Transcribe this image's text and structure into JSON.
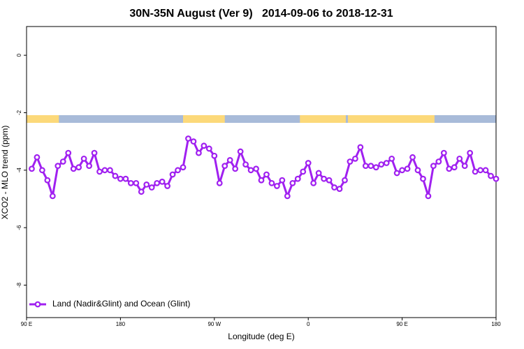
{
  "chart_data": {
    "type": "line",
    "title": "30N-35N August (Ver 9)   2014-09-06 to 2018-12-31",
    "x_label": "Longitude (deg E)",
    "y_label": "XCO2 - MLO trend (ppm)",
    "xlim": [
      90,
      540
    ],
    "ylim": [
      -9.13,
      1.0
    ],
    "xticks": [
      {
        "value": 90,
        "label": "90 E"
      },
      180,
      {
        "value": 270,
        "label": "90 W"
      },
      {
        "value": 360,
        "label": "0"
      },
      {
        "value": 450,
        "label": "90 E"
      },
      {
        "value": 540,
        "label": "180"
      }
    ],
    "yticks": [
      0,
      -2,
      -4,
      -6,
      -8
    ],
    "legend": "lower left",
    "land_color": "#fcd97a",
    "ocean_color": "#a8bbd9",
    "land_ranges": [
      [
        90,
        121
      ],
      [
        240,
        280
      ],
      [
        352,
        396
      ],
      [
        398,
        481
      ]
    ],
    "x": [
      95,
      100,
      105,
      110,
      115,
      120,
      125,
      130,
      135,
      140,
      145,
      150,
      155,
      160,
      165,
      170,
      175,
      180,
      185,
      190,
      195,
      200,
      205,
      210,
      215,
      220,
      225,
      230,
      235,
      240,
      245,
      250,
      255,
      260,
      265,
      270,
      275,
      280,
      285,
      290,
      295,
      300,
      305,
      310,
      315,
      320,
      325,
      330,
      335,
      340,
      345,
      350,
      355,
      360,
      365,
      370,
      375,
      380,
      385,
      390,
      395,
      400,
      405,
      410,
      415,
      420,
      425,
      430,
      435,
      440,
      445,
      450,
      455,
      460,
      465,
      470,
      475,
      480,
      485,
      490,
      495,
      500,
      505,
      510,
      515,
      520,
      525,
      530,
      535,
      540
    ],
    "series": [
      {
        "name": "Land (Nadir&Glint) and Ocean (Glint)",
        "color": "#a020f0",
        "values": [
          -3.95,
          -3.55,
          -4.0,
          -4.35,
          -4.9,
          -3.85,
          -3.7,
          -3.4,
          -3.95,
          -3.9,
          -3.6,
          -3.85,
          -3.4,
          -4.05,
          -4.0,
          -4.0,
          -4.2,
          -4.3,
          -4.3,
          -4.45,
          -4.45,
          -4.75,
          -4.5,
          -4.6,
          -4.45,
          -4.4,
          -4.55,
          -4.15,
          -4.0,
          -3.9,
          -2.9,
          -3.0,
          -3.4,
          -3.15,
          -3.25,
          -3.5,
          -4.45,
          -3.85,
          -3.65,
          -3.95,
          -3.35,
          -3.8,
          -4.0,
          -3.95,
          -4.35,
          -4.15,
          -4.45,
          -4.55,
          -4.35,
          -4.9,
          -4.45,
          -4.3,
          -4.05,
          -3.75,
          -4.45,
          -4.1,
          -4.3,
          -4.35,
          -4.6,
          -4.65,
          -4.35,
          -3.7,
          -3.6,
          -3.2,
          -3.85,
          -3.85,
          -3.9,
          -3.8,
          -3.75,
          -3.6,
          -4.1,
          -4.0,
          -3.95,
          -3.55,
          -4.0,
          -4.3,
          -4.9,
          -3.85,
          -3.7,
          -3.4,
          -3.95,
          -3.9,
          -3.6,
          -3.85,
          -3.4,
          -4.05,
          -4.0,
          -4.0,
          -4.2,
          -4.3
        ]
      }
    ]
  }
}
